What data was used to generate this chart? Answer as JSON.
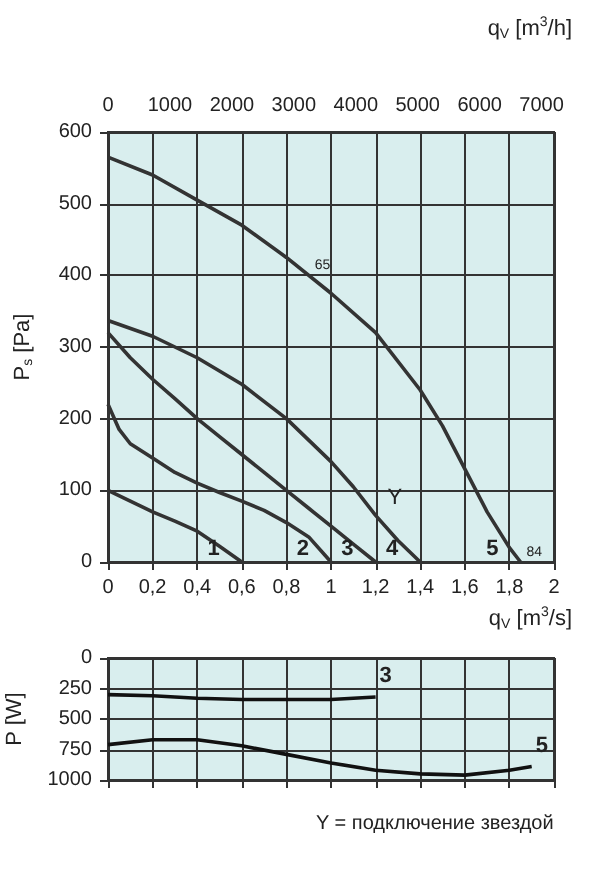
{
  "chart_data": [
    {
      "type": "line",
      "ylabel": "P$_{s}$ [Pa]",
      "xlabel": "q$_{V}$ [m$^{3}$/s]",
      "x2label": "q$_{V}$ [m$^{3}$/h]",
      "xlim": [
        0,
        2
      ],
      "xticks": [
        0,
        {
          "value": 0.2,
          "label": "0,2"
        },
        {
          "value": 0.4,
          "label": "0,4"
        },
        {
          "value": 0.6,
          "label": "0,6"
        },
        {
          "value": 0.8,
          "label": "0,8"
        },
        1,
        {
          "value": 1.2,
          "label": "1,2"
        },
        {
          "value": 1.4,
          "label": "1,4"
        },
        {
          "value": 1.6,
          "label": "1,6"
        },
        {
          "value": 1.8,
          "label": "1,8"
        },
        2
      ],
      "x2lim": [
        0,
        7200
      ],
      "x2ticks": [
        0,
        1000,
        2000,
        3000,
        4000,
        5000,
        6000,
        7000
      ],
      "ylim": [
        0,
        600
      ],
      "yticks": [
        0,
        100,
        200,
        300,
        400,
        500,
        600
      ],
      "grid": true,
      "marker": "none",
      "line_style": "solid",
      "series": [
        {
          "name": "1",
          "color": "#333333",
          "x": [
            0,
            0.1,
            0.2,
            0.3,
            0.4,
            0.5,
            0.6
          ],
          "values": [
            100,
            85,
            70,
            57,
            43,
            22,
            0
          ]
        },
        {
          "name": "2",
          "color": "#333333",
          "x": [
            0,
            0.05,
            0.1,
            0.2,
            0.3,
            0.4,
            0.5,
            0.6,
            0.7,
            0.8,
            0.9,
            1.0
          ],
          "values": [
            220,
            185,
            165,
            145,
            125,
            110,
            97,
            85,
            72,
            55,
            35,
            0
          ]
        },
        {
          "name": "3",
          "color": "#333333",
          "x": [
            0,
            0.1,
            0.2,
            0.3,
            0.4,
            0.5,
            0.6,
            0.7,
            0.8,
            0.9,
            1.0,
            1.1,
            1.2
          ],
          "values": [
            320,
            285,
            255,
            228,
            200,
            175,
            150,
            125,
            100,
            75,
            50,
            25,
            0
          ]
        },
        {
          "name": "4",
          "color": "#333333",
          "x": [
            0,
            0.2,
            0.4,
            0.6,
            0.8,
            1.0,
            1.1,
            1.2,
            1.3,
            1.4
          ],
          "values": [
            337,
            315,
            285,
            248,
            200,
            140,
            105,
            65,
            30,
            0
          ]
        },
        {
          "name": "5",
          "color": "#333333",
          "x": [
            0,
            0.2,
            0.4,
            0.6,
            0.8,
            1.0,
            1.2,
            1.4,
            1.5,
            1.6,
            1.7,
            1.8,
            1.85
          ],
          "values": [
            565,
            540,
            505,
            470,
            425,
            375,
            320,
            240,
            190,
            130,
            70,
            20,
            0
          ]
        }
      ],
      "annotations": [
        {
          "text": "Y",
          "x": 1.2,
          "y": 65
        },
        {
          "text": "65",
          "x": 0.9,
          "y": 400
        },
        {
          "text": "84",
          "x": 1.85,
          "y": 0
        }
      ]
    },
    {
      "type": "line",
      "ylabel": "P [W]",
      "tick_labels": "y",
      "xlim": [
        0,
        2
      ],
      "xticks": [
        0,
        0.2,
        0.4,
        0.6,
        0.8,
        1,
        1.2,
        1.4,
        1.6,
        1.8,
        2
      ],
      "ylim": [
        1000,
        0
      ],
      "yticks": [
        0,
        250,
        500,
        750,
        1000
      ],
      "grid": true,
      "marker": "none",
      "line_style": "solid",
      "series": [
        {
          "name": "3",
          "color": "#111111",
          "x": [
            0,
            0.2,
            0.4,
            0.6,
            0.8,
            1.0,
            1.2
          ],
          "values": [
            300,
            310,
            330,
            340,
            340,
            340,
            320
          ]
        },
        {
          "name": "5",
          "color": "#111111",
          "x": [
            0,
            0.2,
            0.3,
            0.4,
            0.6,
            0.8,
            1.0,
            1.2,
            1.4,
            1.6,
            1.8,
            1.9
          ],
          "values": [
            710,
            670,
            670,
            670,
            720,
            790,
            860,
            920,
            950,
            960,
            920,
            890
          ]
        }
      ],
      "annotations": [
        "Y = подключение звездой"
      ]
    }
  ]
}
